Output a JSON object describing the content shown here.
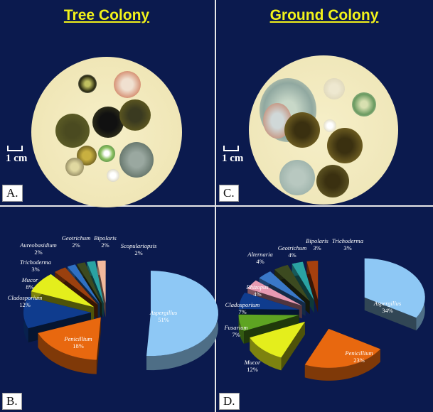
{
  "panels": [
    {
      "id": "A.",
      "title": "Tree Colony",
      "scale": "1 cm"
    },
    {
      "id": "C.",
      "title": "Ground Colony",
      "scale": "1 cm"
    },
    {
      "id": "B."
    },
    {
      "id": "D."
    }
  ],
  "chart_data": [
    {
      "type": "pie",
      "style": "3d-exploded",
      "categories": [
        "Aspergillus",
        "Penicillium",
        "Cladosporium",
        "Mucor",
        "Trichoderma",
        "Aureobasidium",
        "Geotrichum",
        "Bipolaris",
        "Scopulariopsis"
      ],
      "values": [
        51,
        18,
        12,
        8,
        3,
        2,
        2,
        2,
        2
      ],
      "labels": [
        "51%",
        "18%",
        "12%",
        "8%",
        "3%",
        "2%",
        "2%",
        "2%",
        "2%"
      ],
      "colors": [
        "#8ec8f5",
        "#e8680f",
        "#0f3c8e",
        "#e4ee1c",
        "#9a400e",
        "#2f70c2",
        "#3c4a20",
        "#2aa3a3",
        "#f3b99c"
      ]
    },
    {
      "type": "pie",
      "style": "3d-exploded",
      "categories": [
        "Aspergillus",
        "Penicillium",
        "Mucor",
        "Fusarium",
        "Cladosporium",
        "Rhizopus",
        "Alternaria",
        "Geotrichum",
        "Bipolaris",
        "Trichoderma"
      ],
      "values": [
        34,
        23,
        12,
        7,
        7,
        4,
        4,
        4,
        3,
        3
      ],
      "labels": [
        "34%",
        "23%",
        "12%",
        "7%",
        "7%",
        "4%",
        "4%",
        "4%",
        "3%",
        "3%"
      ],
      "colors": [
        "#8ec8f5",
        "#e8680f",
        "#e4ee1c",
        "#5ea422",
        "#0f3c8e",
        "#e79ab2",
        "#3a78c8",
        "#3c4a20",
        "#2aa3a3",
        "#a6400e"
      ]
    }
  ]
}
